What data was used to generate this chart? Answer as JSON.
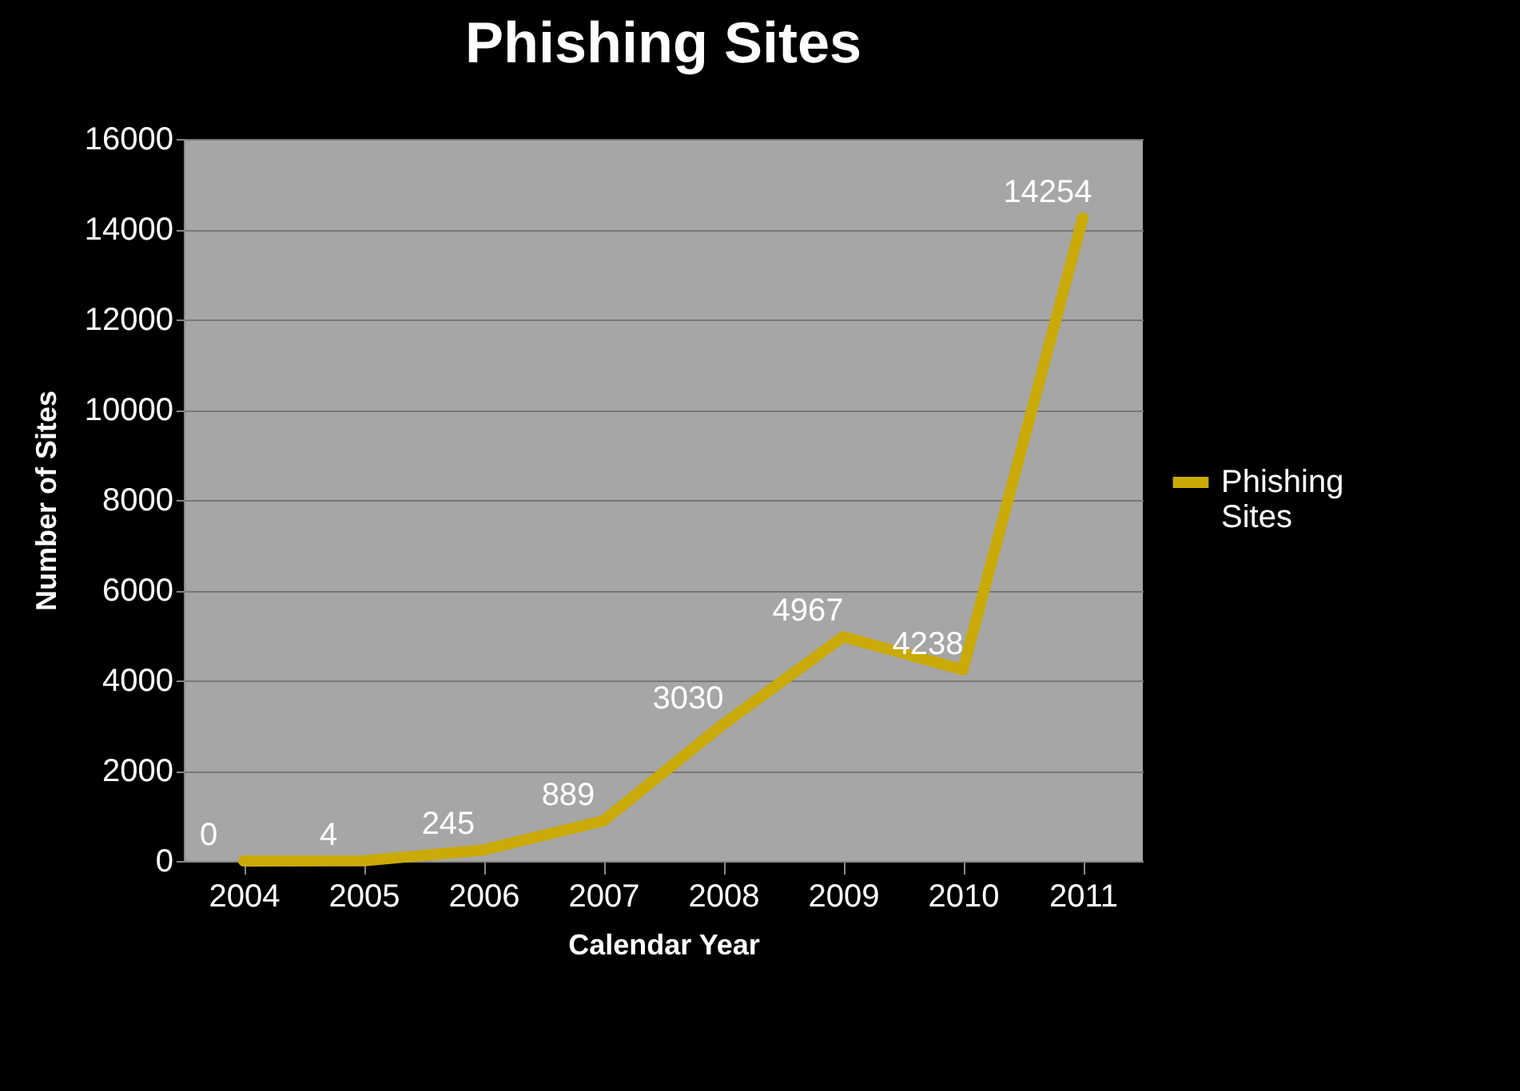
{
  "chart_data": {
    "type": "line",
    "title": "Phishing Sites",
    "xlabel": "Calendar Year",
    "ylabel": "Number of Sites",
    "categories": [
      "2004",
      "2005",
      "2006",
      "2007",
      "2008",
      "2009",
      "2010",
      "2011"
    ],
    "series": [
      {
        "name": "Phishing Sites",
        "color": "#c9aa06",
        "values": [
          0,
          4,
          245,
          889,
          3030,
          4967,
          4238,
          14254
        ]
      }
    ],
    "ylim": [
      0,
      16000
    ],
    "yticks": [
      0,
      2000,
      4000,
      6000,
      8000,
      10000,
      12000,
      14000,
      16000
    ],
    "grid": "y",
    "legend": "right",
    "data_labels": true,
    "marker": "none",
    "line_style": "solid"
  }
}
